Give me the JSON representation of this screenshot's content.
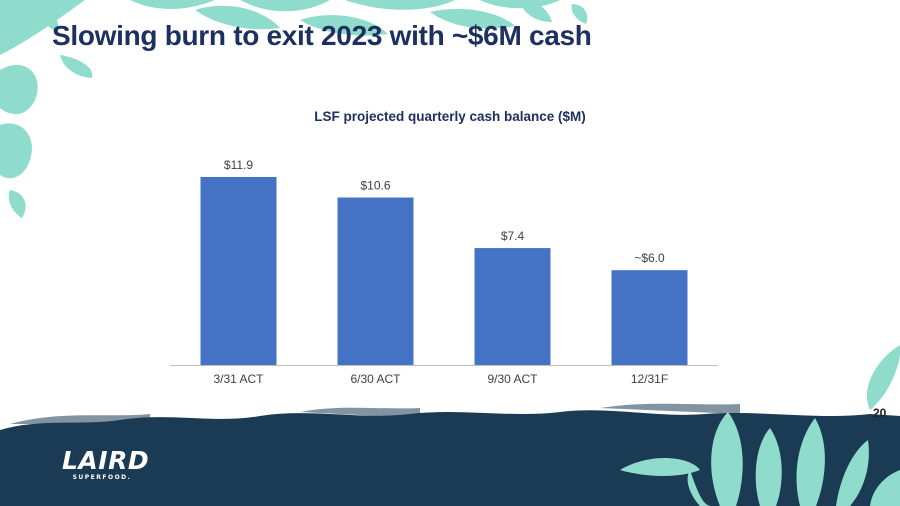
{
  "slide": {
    "title": "Slowing burn to exit 2023 with ~$6M cash",
    "page_number": "20",
    "logo": {
      "name": "LAIRD",
      "tagline": "SUPERFOOD."
    }
  },
  "colors": {
    "title": "#1e3060",
    "bar": "#4472c4",
    "leaf": "#8fdccd",
    "footer": "#1b3b54"
  },
  "chart_data": {
    "type": "bar",
    "title": "LSF projected quarterly cash balance ($M)",
    "categories": [
      "3/31 ACT",
      "6/30 ACT",
      "9/30 ACT",
      "12/31F"
    ],
    "values": [
      11.9,
      10.6,
      7.4,
      6.0
    ],
    "data_labels": [
      "$11.9",
      "$10.6",
      "$7.4",
      "~$6.0"
    ],
    "xlabel": "",
    "ylabel": "",
    "ylim": [
      0,
      12
    ],
    "grid": false,
    "legend": "none"
  }
}
